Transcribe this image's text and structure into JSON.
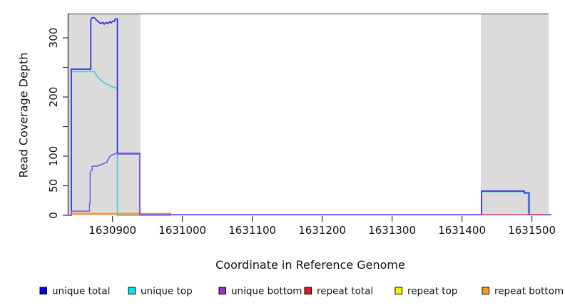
{
  "figure": {
    "xlabel": "Coordinate in Reference Genome",
    "ylabel": "Read Coverage Depth"
  },
  "chart_data": {
    "type": "line",
    "title": "",
    "xlabel": "Coordinate in Reference Genome",
    "ylabel": "Read Coverage Depth",
    "xlim": [
      1630836,
      1631530
    ],
    "ylim": [
      0,
      341
    ],
    "grid": false,
    "legend_position": "bottom",
    "x_ticks": [
      1630900,
      1631000,
      1631100,
      1631200,
      1631300,
      1631400,
      1631500
    ],
    "y_ticks": [
      0,
      50,
      100,
      150,
      200,
      250,
      300
    ],
    "y_ticks_labeled": [
      0,
      50,
      100,
      200,
      300
    ],
    "shaded_regions": [
      {
        "from": 1630838,
        "to": 1630940,
        "color": "#dbdbdb"
      },
      {
        "from": 1631427,
        "to": 1631524,
        "color": "#dbdbdb"
      }
    ],
    "frame": {
      "top_line_color": "#858585",
      "axis_color": "#222222"
    },
    "legend": [
      {
        "label": "unique total",
        "color": "#0000EE"
      },
      {
        "label": "unique top",
        "color": "#00E5EE"
      },
      {
        "label": "unique bottom",
        "color": "#9932CC"
      },
      {
        "label": "repeat total",
        "color": "#E01A1F"
      },
      {
        "label": "repeat top",
        "color": "#F5F500"
      },
      {
        "label": "repeat bottom",
        "color": "#F5A01E"
      }
    ],
    "series": [
      {
        "name": "repeat top",
        "color": "#EDED00",
        "width": 2,
        "segments": [
          [
            [
              1630841,
              2.5
            ],
            [
              1630984,
              2.5
            ]
          ]
        ]
      },
      {
        "name": "repeat bottom",
        "color": "#F59A23",
        "width": 2.5,
        "segments": [
          [
            [
              1630840,
              2.5
            ],
            [
              1630984,
              2.5
            ]
          ]
        ]
      },
      {
        "name": "unique top",
        "color": "#44D5E5",
        "width": 1.8,
        "segments": [
          [
            [
              1630838,
              0
            ],
            [
              1630841,
              0
            ],
            [
              1630841,
              243
            ],
            [
              1630874,
              243
            ],
            [
              1630877,
              237
            ],
            [
              1630880,
              232
            ],
            [
              1630884,
              228
            ],
            [
              1630888,
              224
            ],
            [
              1630893,
              221
            ],
            [
              1630898,
              218
            ],
            [
              1630903,
              216
            ],
            [
              1630907,
              215
            ],
            [
              1630907,
              0
            ],
            [
              1630984,
              0
            ]
          ],
          [
            [
              1631428,
              0
            ],
            [
              1631428,
              40
            ],
            [
              1631489,
              40
            ],
            [
              1631489,
              37
            ],
            [
              1631495,
              37
            ],
            [
              1631495,
              0
            ]
          ]
        ]
      },
      {
        "name": "unique total",
        "color": "#3434DF",
        "width": 1.8,
        "segments": [
          [
            [
              1630838,
              0
            ],
            [
              1630841,
              0
            ],
            [
              1630841,
              247
            ],
            [
              1630869,
              247
            ],
            [
              1630869,
              331
            ],
            [
              1630871,
              334
            ],
            [
              1630874,
              334
            ],
            [
              1630877,
              330
            ],
            [
              1630880,
              327
            ],
            [
              1630883,
              324
            ],
            [
              1630886,
              326
            ],
            [
              1630888,
              323
            ],
            [
              1630891,
              326
            ],
            [
              1630893,
              324
            ],
            [
              1630896,
              327
            ],
            [
              1630898,
              325
            ],
            [
              1630900,
              328
            ],
            [
              1630903,
              328
            ],
            [
              1630904,
              332
            ],
            [
              1630907,
              332
            ],
            [
              1630907,
              104
            ],
            [
              1630939,
              104
            ],
            [
              1630939,
              1
            ],
            [
              1631428,
              1
            ],
            [
              1631428,
              41
            ],
            [
              1631489,
              41
            ],
            [
              1631489,
              38
            ],
            [
              1631496,
              38
            ],
            [
              1631496,
              1
            ],
            [
              1631528,
              1
            ]
          ]
        ]
      },
      {
        "name": "unique bottom",
        "color": "#8B5CE6",
        "width": 1.7,
        "segments": [
          [
            [
              1630838,
              0
            ],
            [
              1630841,
              0
            ],
            [
              1630841,
              7
            ],
            [
              1630867,
              7
            ],
            [
              1630867,
              20
            ],
            [
              1630868,
              20
            ],
            [
              1630868,
              72
            ],
            [
              1630870,
              77
            ],
            [
              1630871,
              77
            ],
            [
              1630871,
              83
            ],
            [
              1630878,
              83
            ],
            [
              1630880,
              84
            ],
            [
              1630884,
              86
            ],
            [
              1630887,
              87
            ],
            [
              1630890,
              89
            ],
            [
              1630892,
              90
            ],
            [
              1630893,
              93
            ],
            [
              1630895,
              97
            ],
            [
              1630897,
              100
            ],
            [
              1630899,
              102
            ],
            [
              1630902,
              103
            ],
            [
              1630905,
              105
            ],
            [
              1630939,
              105
            ],
            [
              1630939,
              1
            ],
            [
              1631528,
              1
            ]
          ]
        ]
      },
      {
        "name": "repeat total",
        "color": "#E05252",
        "width": 1.5,
        "segments": [
          [
            [
              1631428,
              0.8
            ],
            [
              1631516,
              0.8
            ]
          ]
        ]
      }
    ]
  }
}
